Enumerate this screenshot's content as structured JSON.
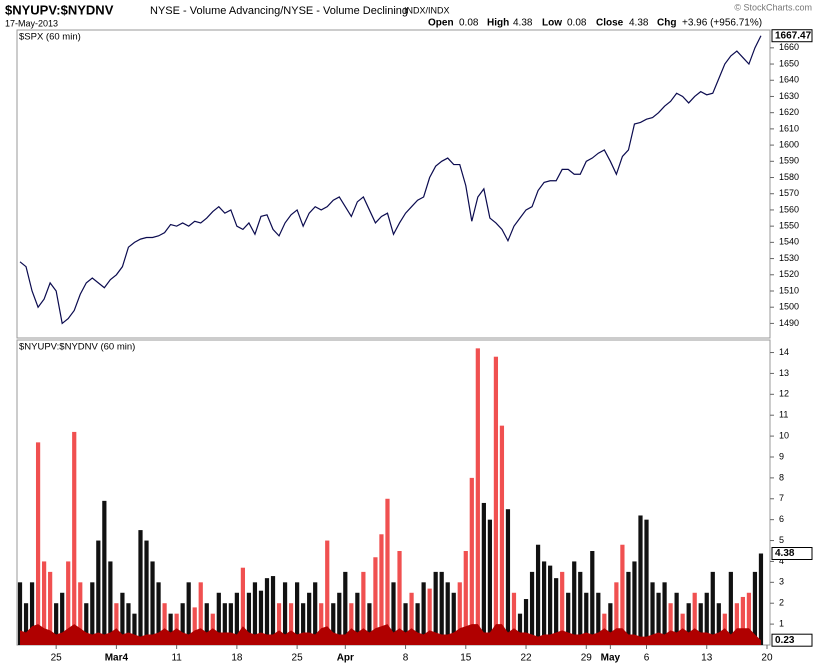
{
  "header": {
    "symbol": "$NYUPV:$NYDNV",
    "date": "17-May-2013",
    "description": "NYSE - Volume Advancing/NYSE - Volume Declining",
    "exchange": "INDX/INDX",
    "stats": [
      {
        "label": "Open",
        "value": 0.08
      },
      {
        "label": "High",
        "value": 4.38
      },
      {
        "label": "Low",
        "value": 0.08
      },
      {
        "label": "Close",
        "value": 4.38
      },
      {
        "label": "Chg",
        "value": "+3.96 (+956.71%)"
      }
    ],
    "credit": "© StockCharts.com"
  },
  "chart_data": [
    {
      "type": "line",
      "title": "$SPX (60 min)",
      "color": "#0b0b4f",
      "values": [
        1528,
        1525,
        1510,
        1500,
        1505,
        1515,
        1510,
        1490,
        1493,
        1498,
        1508,
        1515,
        1518,
        1515,
        1512,
        1517,
        1520,
        1525,
        1537,
        1540,
        1542,
        1543,
        1543,
        1544,
        1546,
        1551,
        1550,
        1552,
        1550,
        1553,
        1552,
        1555,
        1559,
        1562,
        1558,
        1560,
        1550,
        1548,
        1552,
        1545,
        1556,
        1557,
        1548,
        1544,
        1552,
        1557,
        1560,
        1550,
        1558,
        1562,
        1560,
        1562,
        1566,
        1568,
        1562,
        1556,
        1565,
        1568,
        1560,
        1552,
        1556,
        1558,
        1545,
        1552,
        1558,
        1562,
        1566,
        1568,
        1580,
        1587,
        1590,
        1592,
        1588,
        1588,
        1575,
        1553,
        1568,
        1573,
        1555,
        1552,
        1548,
        1541,
        1550,
        1555,
        1560,
        1562,
        1572,
        1577,
        1578,
        1578,
        1585,
        1585,
        1582,
        1582,
        1590,
        1592,
        1595,
        1597,
        1590,
        1582,
        1593,
        1597,
        1613,
        1614,
        1616,
        1617,
        1620,
        1624,
        1627,
        1632,
        1630,
        1626,
        1630,
        1633,
        1631,
        1632,
        1641,
        1650,
        1655,
        1658,
        1654,
        1650,
        1660,
        1667.47,
        null
      ],
      "ylim": [
        1481,
        1671
      ],
      "yticks": [
        1490,
        1500,
        1510,
        1520,
        1530,
        1540,
        1550,
        1560,
        1570,
        1580,
        1590,
        1600,
        1610,
        1620,
        1630,
        1640,
        1650,
        1660
      ],
      "grid": false
    },
    {
      "type": "bar",
      "title": "$NYUPV:$NYDNV (60 min)",
      "categories": [
        null,
        null,
        null,
        null,
        null,
        null,
        "25",
        null,
        null,
        null,
        null,
        null,
        null,
        null,
        null,
        null,
        "Mar4",
        null,
        null,
        null,
        null,
        null,
        null,
        null,
        null,
        null,
        "11",
        null,
        null,
        null,
        null,
        null,
        null,
        null,
        null,
        null,
        "18",
        null,
        null,
        null,
        null,
        null,
        null,
        null,
        null,
        null,
        "25",
        null,
        null,
        null,
        null,
        null,
        null,
        null,
        "Apr",
        null,
        null,
        null,
        null,
        null,
        null,
        null,
        null,
        null,
        "8",
        null,
        null,
        null,
        null,
        null,
        null,
        null,
        null,
        null,
        "15",
        null,
        null,
        null,
        null,
        null,
        null,
        null,
        null,
        null,
        "22",
        null,
        null,
        null,
        null,
        null,
        null,
        null,
        null,
        null,
        "29",
        null,
        null,
        null,
        "May",
        null,
        null,
        null,
        null,
        null,
        "6",
        null,
        null,
        null,
        null,
        null,
        null,
        null,
        null,
        null,
        "13",
        null,
        null,
        null,
        null,
        null,
        null,
        null,
        null,
        null,
        "20"
      ],
      "values": [
        3,
        2,
        3,
        9.7,
        4,
        3.5,
        2,
        2.5,
        4,
        10.2,
        3,
        2,
        3,
        5,
        6.9,
        4,
        2,
        2.5,
        2,
        1.5,
        5.5,
        5,
        4,
        3,
        2,
        1.5,
        1.5,
        2,
        3,
        1.8,
        3,
        2,
        1.5,
        2.5,
        2,
        2,
        2.5,
        3.7,
        2.5,
        3,
        2.6,
        3.2,
        3.3,
        2,
        3,
        2,
        3,
        2,
        2.5,
        3,
        2,
        5,
        2,
        2.5,
        3.5,
        2,
        2.5,
        3.5,
        2,
        4.2,
        5.3,
        7,
        3,
        4.5,
        2,
        2.5,
        2,
        3,
        2.7,
        3.5,
        3.5,
        3,
        2.5,
        3,
        4.5,
        8,
        14.2,
        6.8,
        6,
        13.8,
        10.5,
        6.5,
        2.5,
        1.5,
        2.2,
        3.5,
        4.8,
        4,
        3.8,
        3.2,
        3.5,
        2.5,
        4,
        3.5,
        2.5,
        4.5,
        2.5,
        1.5,
        2,
        3,
        4.8,
        3.5,
        4,
        6.2,
        6,
        3,
        2.5,
        3,
        2,
        2.5,
        1.5,
        2,
        2.5,
        2,
        2.5,
        3.5,
        2,
        1.5,
        3.5,
        2,
        2.3,
        2.5,
        3.5,
        4.38,
        null
      ],
      "colors": [
        "#111111",
        "#111111",
        "#111111",
        "#f05050",
        "#f05050",
        "#f05050",
        "#111111",
        "#111111",
        "#f05050",
        "#f05050",
        "#f05050",
        "#111111",
        "#111111",
        "#111111",
        "#111111",
        "#111111",
        "#f05050",
        "#111111",
        "#111111",
        "#111111",
        "#111111",
        "#111111",
        "#111111",
        "#111111",
        "#f05050",
        "#111111",
        "#f05050",
        "#111111",
        "#111111",
        "#f05050",
        "#f05050",
        "#111111",
        "#f05050",
        "#111111",
        "#111111",
        "#111111",
        "#111111",
        "#f05050",
        "#111111",
        "#111111",
        "#111111",
        "#111111",
        "#111111",
        "#f05050",
        "#111111",
        "#f05050",
        "#111111",
        "#111111",
        "#111111",
        "#111111",
        "#f05050",
        "#f05050",
        "#111111",
        "#111111",
        "#111111",
        "#f05050",
        "#111111",
        "#f05050",
        "#111111",
        "#f05050",
        "#f05050",
        "#f05050",
        "#111111",
        "#f05050",
        "#111111",
        "#f05050",
        "#111111",
        "#111111",
        "#f05050",
        "#111111",
        "#111111",
        "#111111",
        "#111111",
        "#f05050",
        "#f05050",
        "#f05050",
        "#f05050",
        "#111111",
        "#111111",
        "#f05050",
        "#f05050",
        "#111111",
        "#f05050",
        "#111111",
        "#111111",
        "#111111",
        "#111111",
        "#111111",
        "#111111",
        "#111111",
        "#f05050",
        "#111111",
        "#111111",
        "#111111",
        "#111111",
        "#111111",
        "#111111",
        "#f05050",
        "#111111",
        "#f05050",
        "#f05050",
        "#111111",
        "#111111",
        "#111111",
        "#111111",
        "#111111",
        "#111111",
        "#111111",
        "#f05050",
        "#111111",
        "#f05050",
        "#111111",
        "#f05050",
        "#111111",
        "#111111",
        "#111111",
        "#111111",
        "#f05050",
        "#111111",
        "#f05050",
        "#f05050",
        "#f05050",
        "#111111",
        "#111111",
        null
      ],
      "area": {
        "color": "#b00000",
        "values": [
          0.7,
          0.6,
          0.9,
          1.0,
          0.8,
          0.7,
          0.5,
          0.6,
          0.8,
          1.0,
          0.8,
          0.6,
          0.5,
          0.6,
          0.5,
          0.6,
          0.8,
          0.5,
          0.6,
          0.5,
          0.4,
          0.5,
          0.5,
          0.6,
          0.8,
          0.6,
          0.8,
          0.6,
          0.5,
          0.7,
          0.8,
          0.6,
          0.8,
          0.6,
          0.6,
          0.6,
          0.5,
          0.9,
          0.6,
          0.5,
          0.6,
          0.5,
          0.5,
          0.7,
          0.5,
          0.7,
          0.5,
          0.6,
          0.6,
          0.5,
          0.8,
          0.9,
          0.6,
          0.5,
          0.5,
          0.8,
          0.6,
          0.8,
          0.6,
          0.8,
          0.9,
          1.0,
          0.6,
          0.8,
          0.6,
          0.8,
          0.6,
          0.5,
          0.7,
          0.6,
          0.5,
          0.5,
          0.6,
          0.8,
          0.9,
          1.0,
          1.0,
          0.6,
          0.6,
          1.0,
          1.0,
          0.6,
          0.8,
          0.6,
          0.6,
          0.5,
          0.4,
          0.5,
          0.5,
          0.6,
          0.7,
          0.6,
          0.5,
          0.5,
          0.6,
          0.5,
          0.6,
          0.8,
          0.6,
          0.8,
          0.8,
          0.5,
          0.5,
          0.4,
          0.4,
          0.5,
          0.6,
          0.5,
          0.7,
          0.6,
          0.8,
          0.6,
          0.8,
          0.6,
          0.6,
          0.5,
          0.6,
          0.8,
          0.5,
          0.8,
          0.8,
          0.8,
          0.5,
          0.23,
          null
        ]
      },
      "ylim": [
        0,
        14.6
      ],
      "yticks": [
        1,
        2,
        3,
        4,
        5,
        6,
        7,
        8,
        9,
        10,
        11,
        12,
        13,
        14
      ],
      "grid": false
    }
  ]
}
